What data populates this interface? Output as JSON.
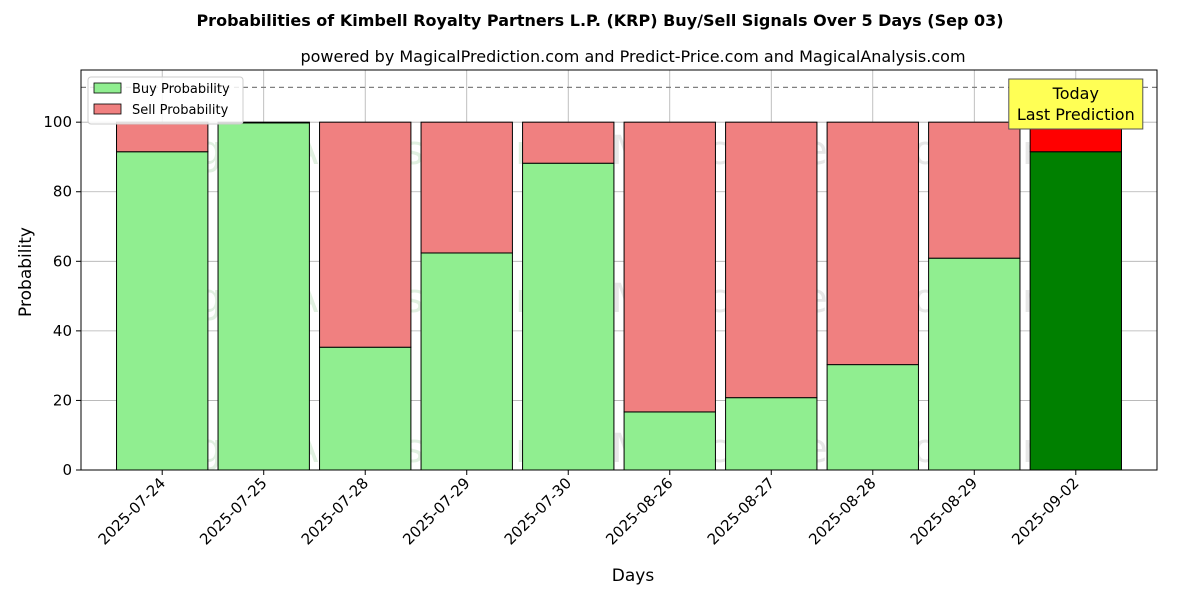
{
  "chart_data": {
    "type": "bar",
    "stacked": true,
    "title": "Probabilities of Kimbell Royalty Partners L.P. (KRP) Buy/Sell Signals Over 5 Days (Sep 03)",
    "subtitle": "powered by MagicalPrediction.com and Predict-Price.com and MagicalAnalysis.com",
    "xlabel": "Days",
    "ylabel": "Probability",
    "ylim": [
      0,
      115
    ],
    "yticks": [
      0,
      20,
      40,
      60,
      80,
      100
    ],
    "reference_line": 110,
    "grid": true,
    "legend_position": "top-left",
    "categories": [
      "2025-07-24",
      "2025-07-25",
      "2025-07-28",
      "2025-07-29",
      "2025-07-30",
      "2025-08-26",
      "2025-08-27",
      "2025-08-28",
      "2025-08-29",
      "2025-09-02"
    ],
    "series": [
      {
        "name": "Buy Probability",
        "color": "#90EE90",
        "values": [
          91.5,
          99.8,
          35.3,
          62.4,
          88.2,
          16.7,
          20.8,
          30.3,
          60.9,
          91.5
        ]
      },
      {
        "name": "Sell Probability",
        "color": "#F08080",
        "values": [
          8.5,
          0.2,
          64.7,
          37.6,
          11.8,
          83.3,
          79.2,
          69.7,
          39.1,
          8.5
        ]
      }
    ],
    "highlight": {
      "index": 9,
      "buy_color": "#008000",
      "sell_color": "#FF0000"
    },
    "annotation": {
      "line1": "Today",
      "line2": "Last Prediction",
      "color": "#FFFF55"
    },
    "watermarks": [
      "MagicalAnalysis.com",
      "MagicalPrediction.com"
    ]
  }
}
